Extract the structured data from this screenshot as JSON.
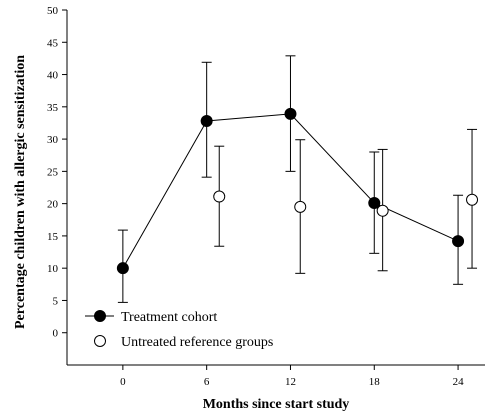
{
  "chart_data": {
    "type": "line",
    "xlabel": "Months since start study",
    "ylabel": "Percentage children with allergic sensitization",
    "xlim": [
      -4,
      26
    ],
    "ylim": [
      -5,
      50
    ],
    "x_ticks": [
      0,
      6,
      12,
      18,
      24
    ],
    "y_ticks": [
      0,
      5,
      10,
      15,
      20,
      25,
      30,
      35,
      40,
      45,
      50
    ],
    "grid": false,
    "legend_position": "bottom-left",
    "series": [
      {
        "name": "Treatment cohort",
        "marker": "filled-circle",
        "connected": true,
        "color": "#000000",
        "points": [
          {
            "x": 0,
            "y": 10,
            "lo": 4.7,
            "hi": 15.9
          },
          {
            "x": 6,
            "y": 32.8,
            "lo": 24.1,
            "hi": 41.9
          },
          {
            "x": 12,
            "y": 33.9,
            "lo": 25.0,
            "hi": 42.9
          },
          {
            "x": 18,
            "y": 20.1,
            "lo": 12.3,
            "hi": 28.0
          },
          {
            "x": 24,
            "y": 14.2,
            "lo": 7.5,
            "hi": 21.3
          }
        ]
      },
      {
        "name": "Untreated reference groups",
        "marker": "open-circle",
        "connected": false,
        "color": "#000000",
        "points": [
          {
            "x": 6.9,
            "y": 21.1,
            "lo": 13.4,
            "hi": 28.9
          },
          {
            "x": 12.7,
            "y": 19.5,
            "lo": 9.2,
            "hi": 29.9
          },
          {
            "x": 18.6,
            "y": 18.9,
            "lo": 9.6,
            "hi": 28.4
          },
          {
            "x": 25.0,
            "y": 20.6,
            "lo": 10.0,
            "hi": 31.5
          }
        ]
      }
    ]
  }
}
